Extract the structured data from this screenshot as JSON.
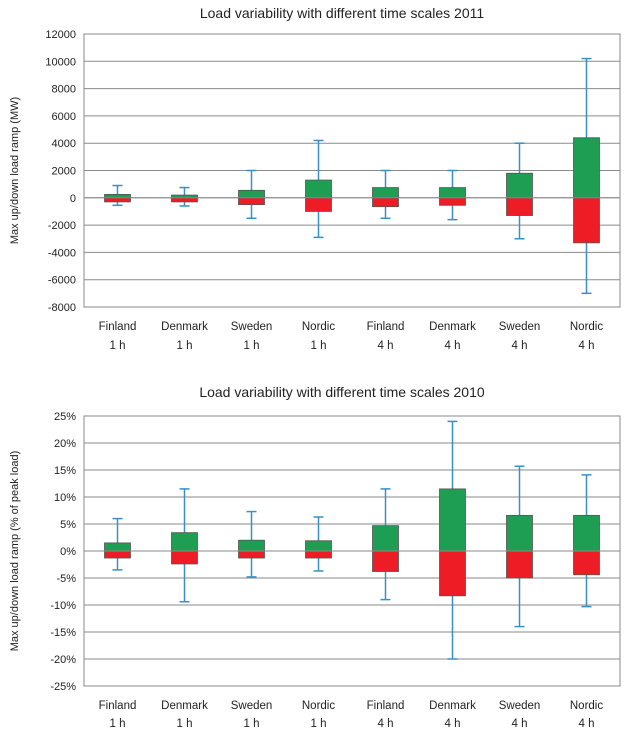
{
  "colors": {
    "up": "#1e9e52",
    "down": "#ee1c25",
    "whisker": "#3a8fc4"
  },
  "chart_data": [
    {
      "type": "box-range",
      "title": "Load variability with different time scales 2011",
      "ylabel": "Max up/down load ramp (MW)",
      "xlabel": "",
      "ylim": [
        -8000,
        12000
      ],
      "ytick_step": 2000,
      "ytick_labels": [
        "-8000",
        "-6000",
        "-4000",
        "-2000",
        "0",
        "2000",
        "4000",
        "6000",
        "8000",
        "10000",
        "12000"
      ],
      "grid": true,
      "categories": [
        [
          "Finland",
          "1 h"
        ],
        [
          "Denmark",
          "1 h"
        ],
        [
          "Sweden",
          "1 h"
        ],
        [
          "Nordic",
          "1 h"
        ],
        [
          "Finland",
          "4 h"
        ],
        [
          "Denmark",
          "4 h"
        ],
        [
          "Sweden",
          "4 h"
        ],
        [
          "Nordic",
          "4 h"
        ]
      ],
      "series": [
        {
          "name": "",
          "values": [
            250,
            200,
            550,
            1300,
            750,
            750,
            1800,
            4400
          ]
        },
        {
          "name": "",
          "values": [
            -300,
            -300,
            -500,
            -1000,
            -650,
            -550,
            -1300,
            -3300
          ]
        },
        {
          "name": "",
          "values": [
            900,
            750,
            2000,
            4200,
            2000,
            2000,
            4000,
            10200
          ]
        },
        {
          "name": "",
          "values": [
            -550,
            -600,
            -1500,
            -2900,
            -1500,
            -1600,
            -3000,
            -7000
          ]
        }
      ]
    },
    {
      "type": "box-range",
      "title": "Load variability with different time scales 2010",
      "ylabel": "Max up/down load ramp (% of peak load)",
      "xlabel": "",
      "ylim": [
        -25,
        25
      ],
      "ytick_step": 5,
      "ytick_labels": [
        "-25%",
        "-20%",
        "-15%",
        "-10%",
        "-5%",
        "0%",
        "5%",
        "10%",
        "15%",
        "20%",
        "25%"
      ],
      "grid": true,
      "categories": [
        [
          "Finland",
          "1 h"
        ],
        [
          "Denmark",
          "1 h"
        ],
        [
          "Sweden",
          "1 h"
        ],
        [
          "Nordic",
          "1 h"
        ],
        [
          "Finland",
          "4 h"
        ],
        [
          "Denmark",
          "4 h"
        ],
        [
          "Sweden",
          "4 h"
        ],
        [
          "Nordic",
          "4 h"
        ]
      ],
      "series": [
        {
          "name": "",
          "values": [
            1.5,
            3.4,
            2.0,
            1.9,
            4.7,
            11.5,
            6.6,
            6.6
          ]
        },
        {
          "name": "",
          "values": [
            -1.3,
            -2.4,
            -1.3,
            -1.3,
            -3.8,
            -8.3,
            -5.0,
            -4.4
          ]
        },
        {
          "name": "",
          "values": [
            6.0,
            11.5,
            7.3,
            6.3,
            11.5,
            24.0,
            15.7,
            14.1
          ]
        },
        {
          "name": "",
          "values": [
            -3.5,
            -9.4,
            -4.8,
            -3.7,
            -9.0,
            -20.0,
            -14.0,
            -10.3
          ]
        }
      ]
    }
  ]
}
